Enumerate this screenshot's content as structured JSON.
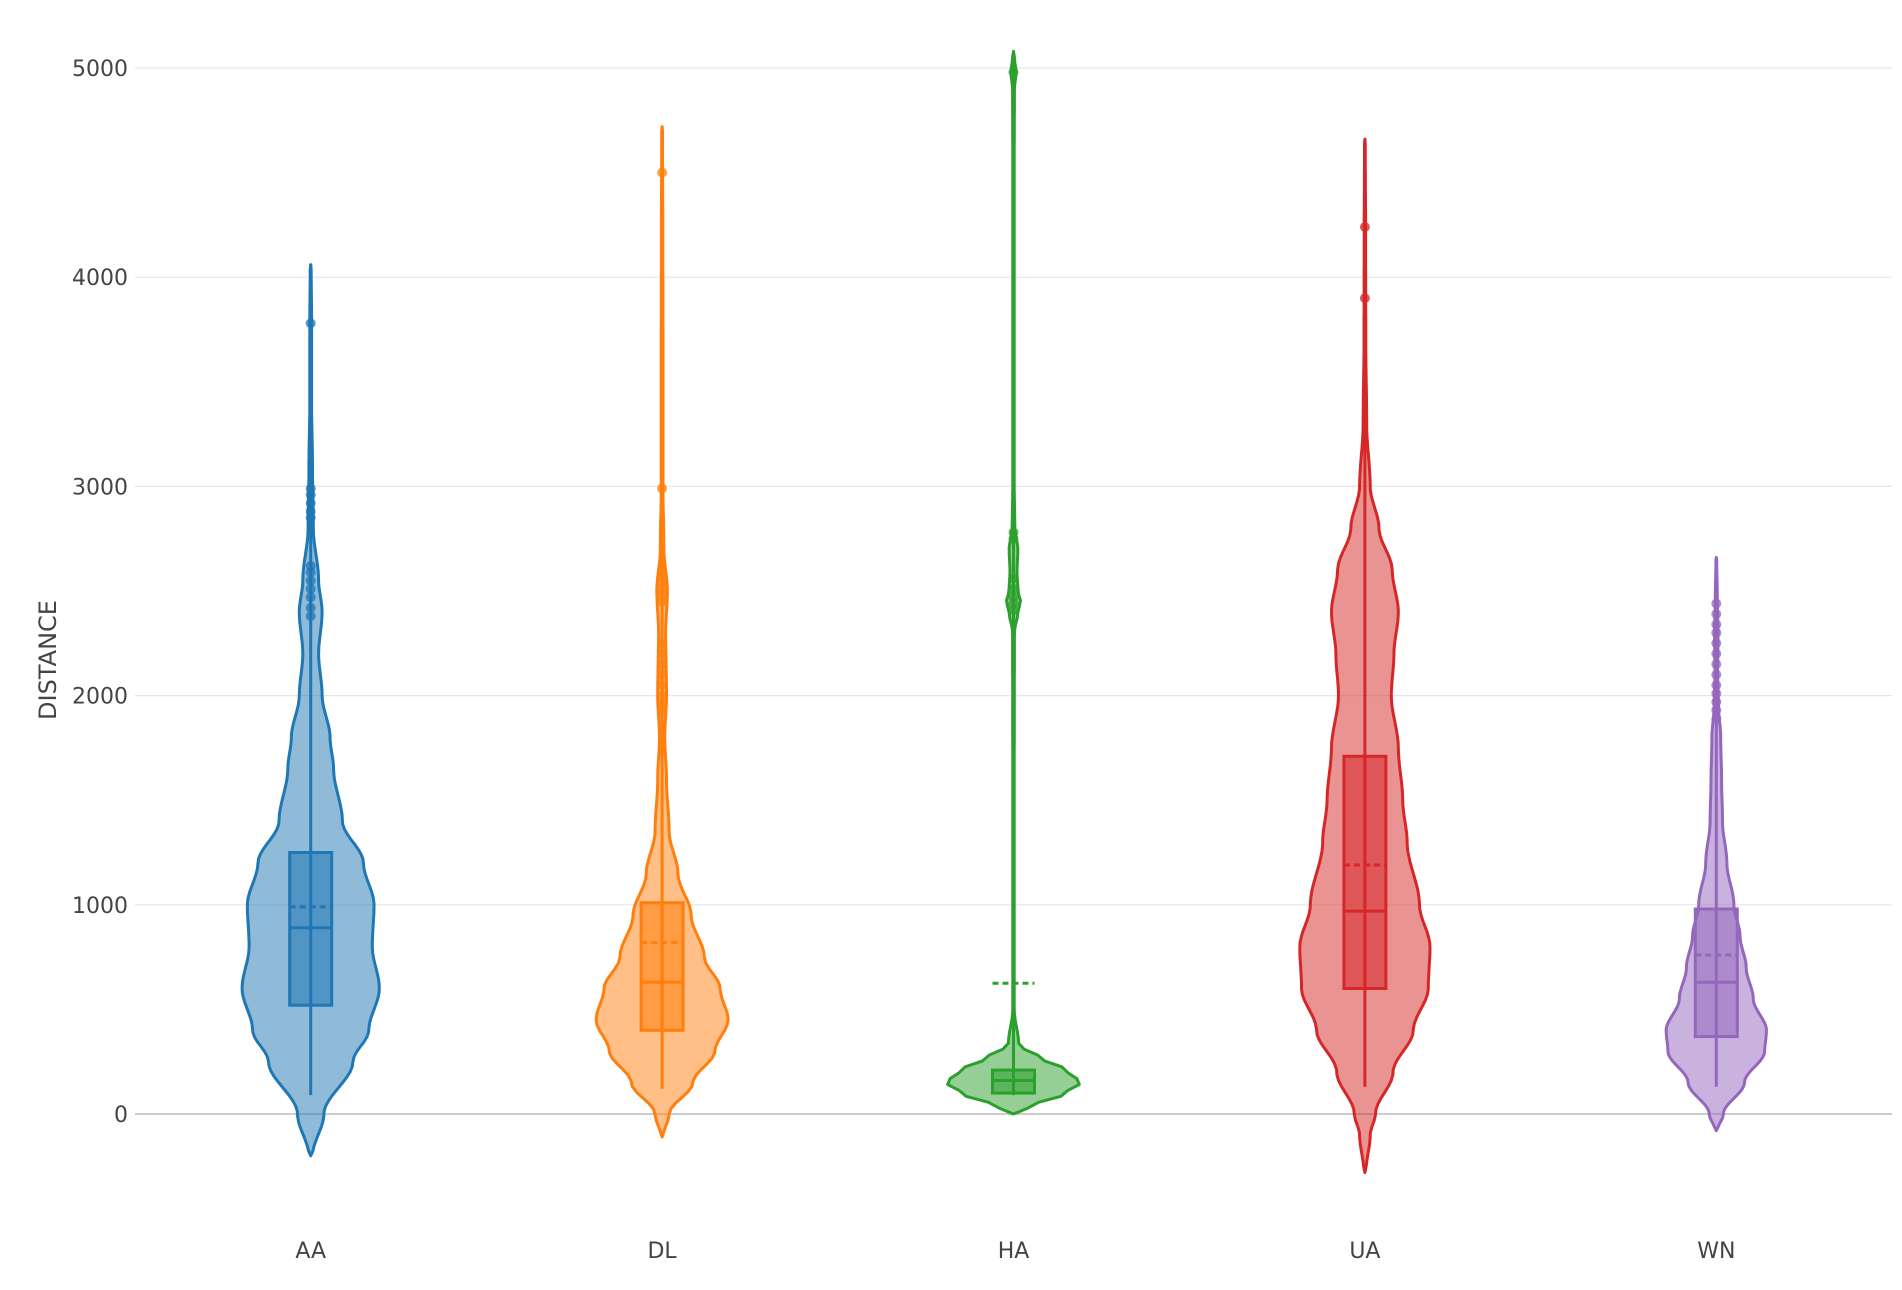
{
  "chart_data": {
    "type": "violin",
    "ylabel": "DISTANCE",
    "ylim": [
      -400,
      5200
    ],
    "yticks": [
      0,
      1000,
      2000,
      3000,
      4000,
      5000
    ],
    "grid": true,
    "box_inside": true,
    "mean_line": true,
    "categories": [
      "AA",
      "DL",
      "HA",
      "UA",
      "WN"
    ],
    "series": [
      {
        "category": "AA",
        "color": "#1f77b4",
        "min": 90,
        "q1": 520,
        "median": 890,
        "q3": 1250,
        "max": 4060,
        "mean": 990,
        "kde_range": [
          -200,
          4060
        ],
        "density": [
          [
            -200,
            0.02
          ],
          [
            0,
            0.15
          ],
          [
            250,
            0.48
          ],
          [
            400,
            0.66
          ],
          [
            600,
            0.78
          ],
          [
            800,
            0.7
          ],
          [
            1000,
            0.72
          ],
          [
            1200,
            0.6
          ],
          [
            1400,
            0.36
          ],
          [
            1650,
            0.26
          ],
          [
            1800,
            0.22
          ],
          [
            2000,
            0.13
          ],
          [
            2200,
            0.09
          ],
          [
            2400,
            0.13
          ],
          [
            2550,
            0.09
          ],
          [
            2800,
            0.03
          ],
          [
            3100,
            0.02
          ],
          [
            3400,
            0.01
          ],
          [
            3800,
            0.01
          ],
          [
            4060,
            0.005
          ]
        ],
        "outliers": [
          2380,
          2420,
          2470,
          2510,
          2550,
          2590,
          2620,
          2850,
          2880,
          2920,
          2960,
          2990,
          3780
        ]
      },
      {
        "category": "DL",
        "color": "#ff7f0e",
        "min": 120,
        "q1": 400,
        "median": 630,
        "q3": 1010,
        "max": 4720,
        "mean": 820,
        "kde_range": [
          -110,
          4720
        ],
        "density": [
          [
            -110,
            0.01
          ],
          [
            0,
            0.08
          ],
          [
            150,
            0.35
          ],
          [
            300,
            0.6
          ],
          [
            450,
            0.75
          ],
          [
            600,
            0.66
          ],
          [
            750,
            0.48
          ],
          [
            950,
            0.33
          ],
          [
            1150,
            0.18
          ],
          [
            1350,
            0.08
          ],
          [
            1600,
            0.05
          ],
          [
            1800,
            0.03
          ],
          [
            2000,
            0.05
          ],
          [
            2300,
            0.04
          ],
          [
            2500,
            0.06
          ],
          [
            2700,
            0.02
          ],
          [
            3000,
            0.01
          ],
          [
            3600,
            0.01
          ],
          [
            4200,
            0.008
          ],
          [
            4720,
            0.004
          ]
        ],
        "outliers": [
          1920,
          1960,
          2000,
          2050,
          2100,
          2150,
          2200,
          2250,
          2450,
          2480,
          2510,
          2540,
          2570,
          2600,
          2990,
          4500
        ]
      },
      {
        "category": "HA",
        "color": "#2ca02c",
        "min": 90,
        "q1": 100,
        "median": 160,
        "q3": 210,
        "max": 5080,
        "mean": 625,
        "kde_range": [
          0,
          5080
        ],
        "density": [
          [
            0,
            0.02
          ],
          [
            40,
            0.2
          ],
          [
            90,
            0.55
          ],
          [
            150,
            0.76
          ],
          [
            210,
            0.6
          ],
          [
            270,
            0.3
          ],
          [
            330,
            0.06
          ],
          [
            500,
            0.008
          ],
          [
            1500,
            0.008
          ],
          [
            2300,
            0.01
          ],
          [
            2400,
            0.05
          ],
          [
            2450,
            0.08
          ],
          [
            2500,
            0.05
          ],
          [
            2600,
            0.04
          ],
          [
            2700,
            0.05
          ],
          [
            2800,
            0.015
          ],
          [
            3000,
            0.008
          ],
          [
            4500,
            0.008
          ],
          [
            4900,
            0.01
          ],
          [
            4980,
            0.03
          ],
          [
            5050,
            0.01
          ],
          [
            5080,
            0.005
          ]
        ],
        "outliers": [
          2410,
          2440,
          2470,
          2510,
          2560,
          2750,
          2780,
          4980
        ]
      },
      {
        "category": "UA",
        "color": "#d62728",
        "min": 130,
        "q1": 600,
        "median": 970,
        "q3": 1710,
        "max": 4660,
        "mean": 1190,
        "kde_range": [
          -280,
          4660
        ],
        "density": [
          [
            -280,
            0.01
          ],
          [
            -100,
            0.06
          ],
          [
            0,
            0.12
          ],
          [
            200,
            0.32
          ],
          [
            400,
            0.55
          ],
          [
            600,
            0.72
          ],
          [
            800,
            0.74
          ],
          [
            1000,
            0.62
          ],
          [
            1300,
            0.48
          ],
          [
            1500,
            0.43
          ],
          [
            1750,
            0.38
          ],
          [
            2000,
            0.3
          ],
          [
            2200,
            0.33
          ],
          [
            2400,
            0.38
          ],
          [
            2600,
            0.31
          ],
          [
            2800,
            0.16
          ],
          [
            3000,
            0.06
          ],
          [
            3300,
            0.02
          ],
          [
            3700,
            0.01
          ],
          [
            4200,
            0.008
          ],
          [
            4660,
            0.004
          ]
        ],
        "outliers": [
          3900,
          4240
        ]
      },
      {
        "category": "WN",
        "color": "#9467bd",
        "min": 130,
        "q1": 370,
        "median": 630,
        "q3": 980,
        "max": 2660,
        "mean": 760,
        "kde_range": [
          -80,
          2660
        ],
        "density": [
          [
            -80,
            0.01
          ],
          [
            0,
            0.08
          ],
          [
            150,
            0.32
          ],
          [
            300,
            0.55
          ],
          [
            400,
            0.57
          ],
          [
            550,
            0.42
          ],
          [
            700,
            0.34
          ],
          [
            850,
            0.27
          ],
          [
            1000,
            0.2
          ],
          [
            1200,
            0.12
          ],
          [
            1400,
            0.07
          ],
          [
            1600,
            0.06
          ],
          [
            1800,
            0.05
          ],
          [
            1950,
            0.025
          ],
          [
            2100,
            0.015
          ],
          [
            2300,
            0.02
          ],
          [
            2450,
            0.012
          ],
          [
            2660,
            0.004
          ]
        ],
        "outliers": [
          1890,
          1930,
          1970,
          2010,
          2050,
          2100,
          2150,
          2200,
          2250,
          2300,
          2340,
          2390,
          2440
        ]
      }
    ]
  }
}
